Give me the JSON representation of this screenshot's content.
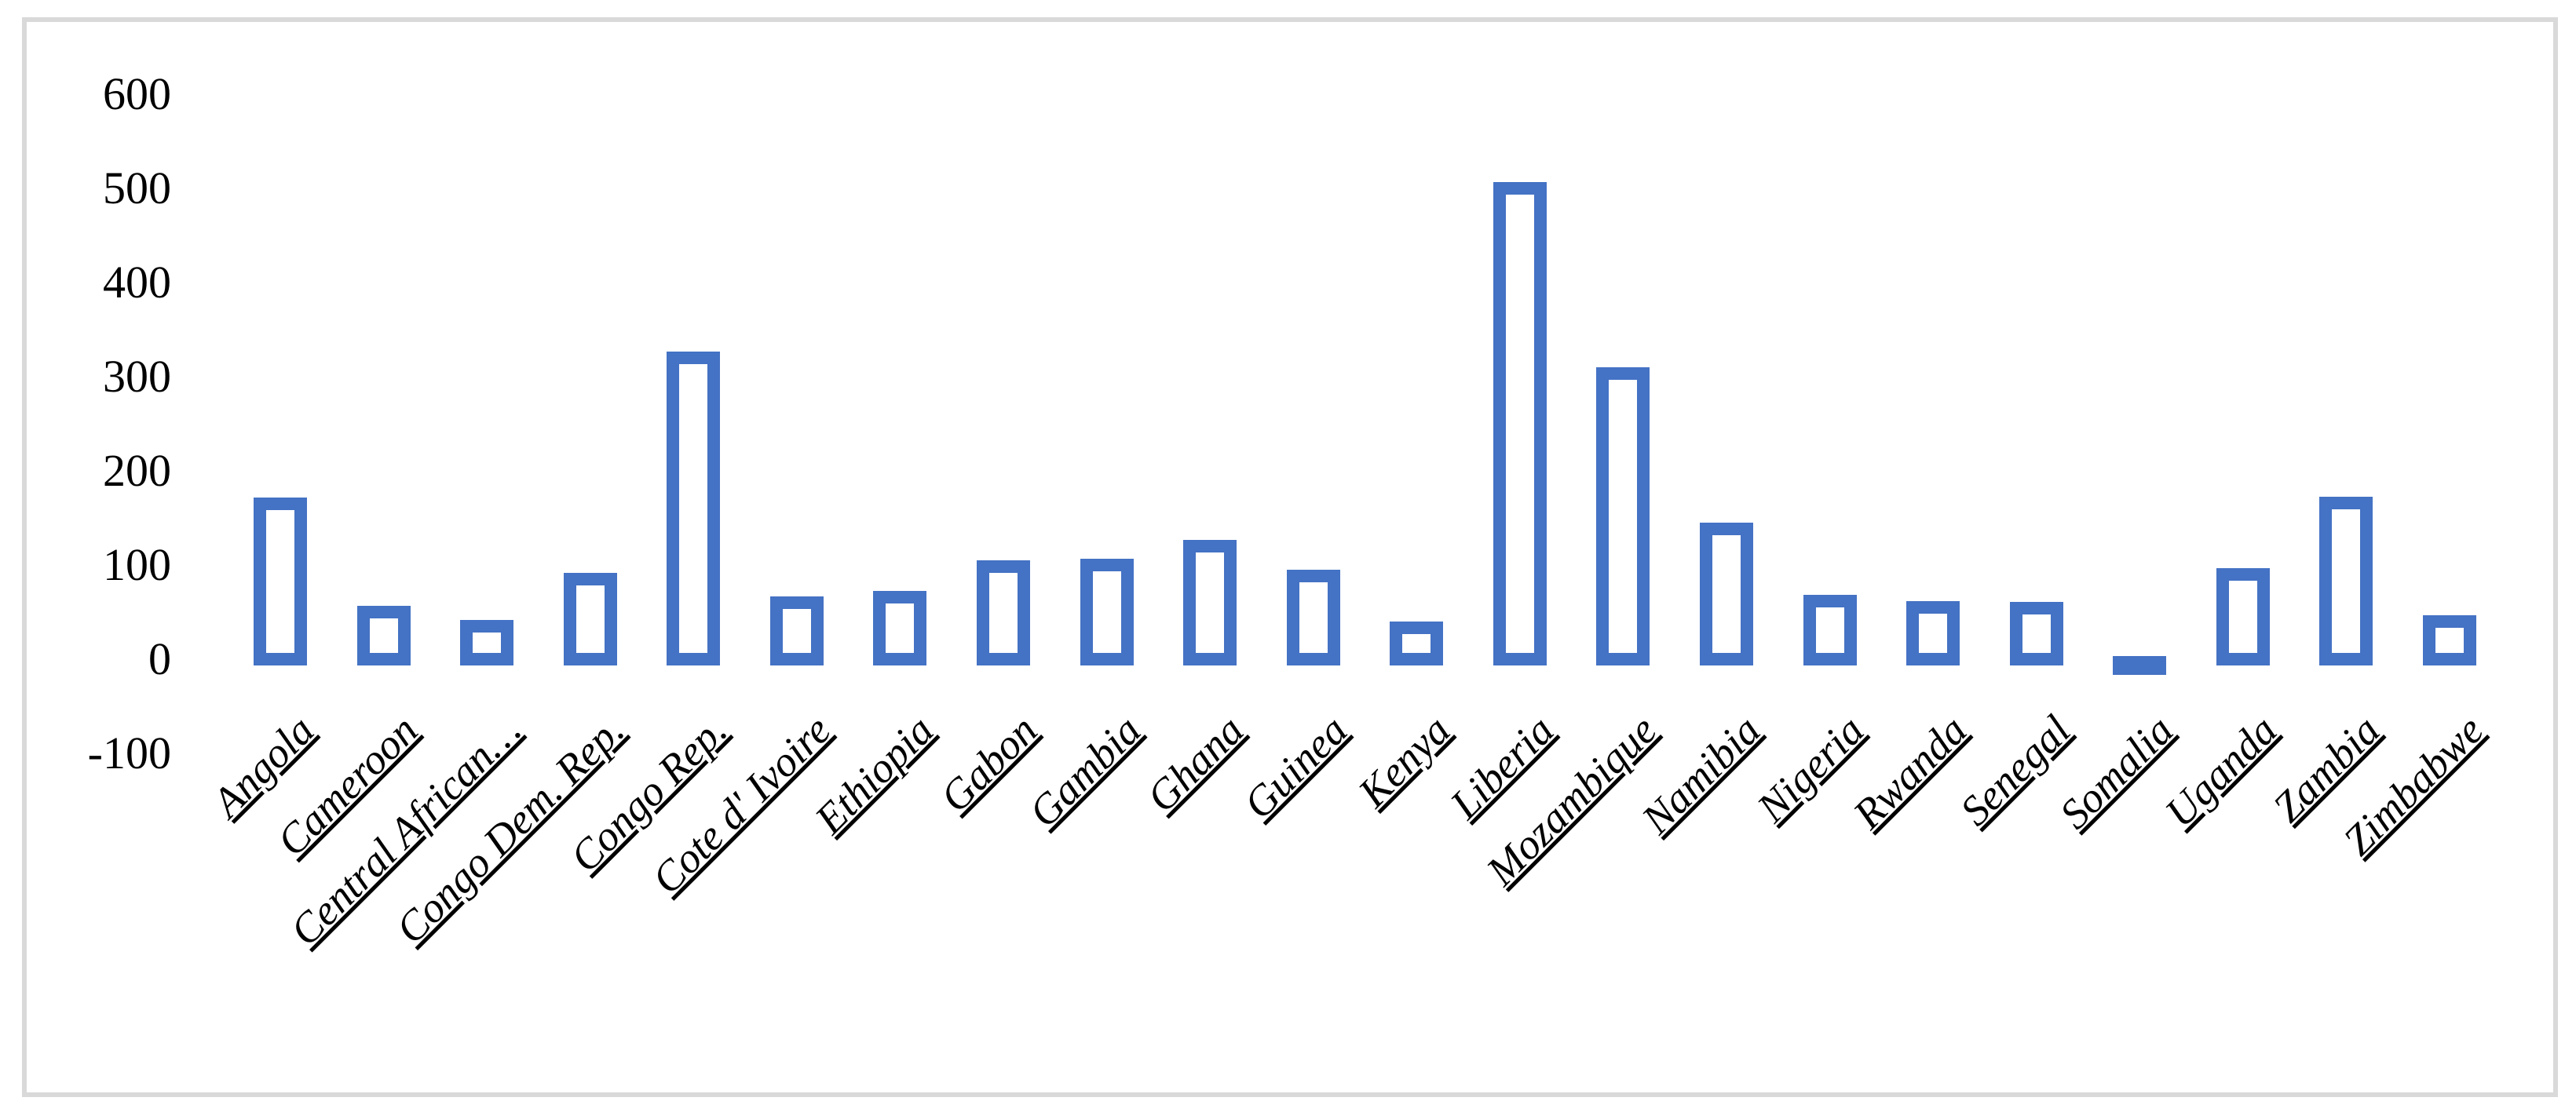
{
  "chart_data": {
    "type": "bar",
    "title": "",
    "xlabel": "",
    "ylabel": "",
    "categories": [
      "Angola",
      "Cameroon",
      "Central African…",
      "Congo Dem. Rep.",
      "Congo Rep.",
      "Cote d' Ivoire",
      "Ethiopia",
      "Gabon",
      "Gambia",
      "Ghana",
      "Guinea",
      "Kenya",
      "Liberia",
      "Mozambique",
      "Namibia",
      "Nigeria",
      "Rwanda",
      "Senegal",
      "Somalia",
      "Uganda",
      "Zambia",
      "Zimbabwe"
    ],
    "values": [
      165,
      50,
      35,
      85,
      320,
      60,
      66,
      98,
      100,
      120,
      88,
      33,
      500,
      303,
      138,
      62,
      55,
      54,
      -10,
      90,
      166,
      40
    ],
    "ylim": [
      -100,
      600
    ],
    "y_ticks": [
      600,
      500,
      400,
      300,
      200,
      100,
      0,
      -100
    ],
    "y_tick_labels": [
      "600",
      "500",
      "400",
      "300",
      "200",
      "100",
      "0",
      "-100"
    ],
    "grid": false,
    "legend": "none",
    "bar_style": "hollow-outline",
    "colors": {
      "bar_outline": "#4472C4",
      "frame_border": "#D9D9D9",
      "background": "#ffffff",
      "text": "#000000"
    }
  }
}
